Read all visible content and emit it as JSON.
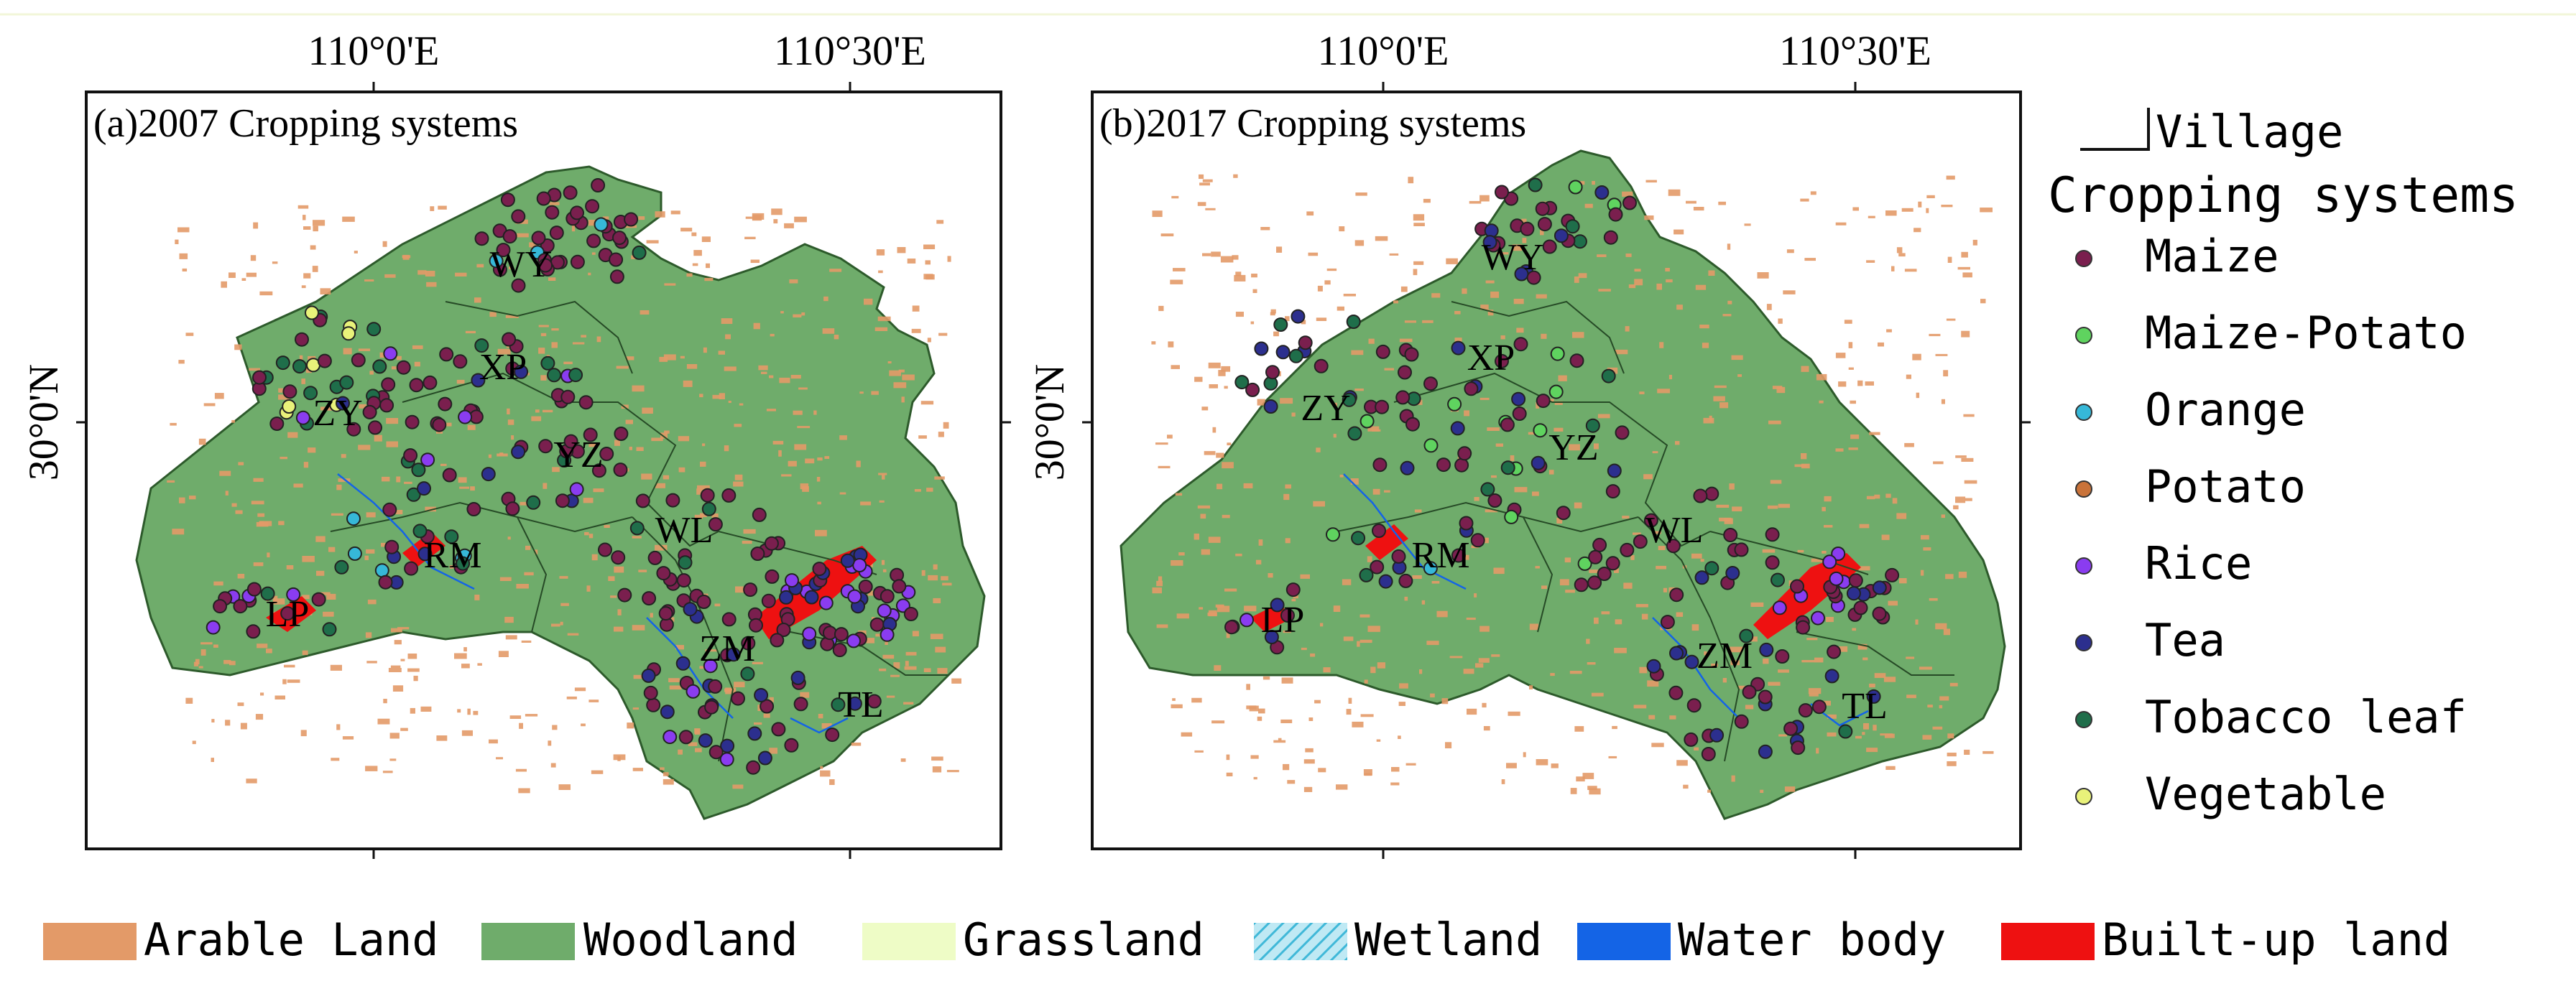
{
  "panels": [
    {
      "title": "(a)2007 Cropping systems",
      "lon_ticks": [
        "110°0'E",
        "110°30'E"
      ],
      "lat_tick": "30°0'N",
      "villages": [
        "WY",
        "XP",
        "ZY",
        "YZ",
        "RM",
        "WL",
        "LP",
        "ZM",
        "TL"
      ]
    },
    {
      "title": "(b)2017 Cropping systems",
      "lon_ticks": [
        "110°0'E",
        "110°30'E"
      ],
      "lat_tick": "30°0'N",
      "villages": [
        "WY",
        "XP",
        "ZY",
        "YZ",
        "RM",
        "WL",
        "LP",
        "ZM",
        "TL"
      ]
    }
  ],
  "legend": {
    "village_label": "Village",
    "title": "Cropping systems",
    "items": [
      {
        "label": "Maize",
        "color": "#7a1f4e"
      },
      {
        "label": "Maize-Potato",
        "color": "#5fd35f"
      },
      {
        "label": "Orange",
        "color": "#36b8d8"
      },
      {
        "label": "Potato",
        "color": "#c9733a"
      },
      {
        "label": "Rice",
        "color": "#8a3cf0"
      },
      {
        "label": "Tea",
        "color": "#2c2f8e"
      },
      {
        "label": "Tobacco leaf",
        "color": "#1f6e4a"
      },
      {
        "label": "Vegetable",
        "color": "#e9f27a"
      }
    ]
  },
  "land_use": [
    {
      "label": "Arable Land",
      "color": "#e39a68"
    },
    {
      "label": "Woodland",
      "color": "#6fac6b"
    },
    {
      "label": "Grassland",
      "color": "#eefcc6"
    },
    {
      "label": "Wetland",
      "color": "#7fd0e8"
    },
    {
      "label": "Water body",
      "color": "#1464e6"
    },
    {
      "label": "Built-up land",
      "color": "#ee1111"
    }
  ]
}
